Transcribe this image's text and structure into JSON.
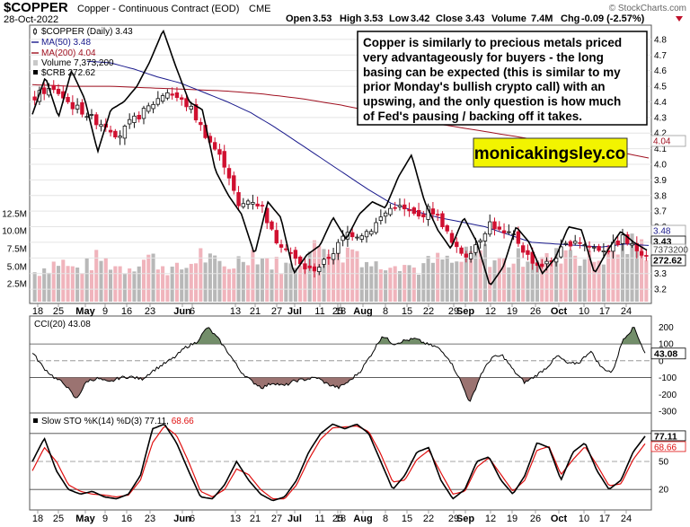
{
  "header": {
    "symbol": "$COPPER",
    "description": "Copper - Continuous Contract (EOD)",
    "exchange": "CME",
    "date": "28-Oct-2022",
    "open_label": "Open",
    "open": "3.53",
    "high_label": "High",
    "high": "3.53",
    "low_label": "Low",
    "low": "3.42",
    "close_label": "Close",
    "close": "3.43",
    "volume_label": "Volume",
    "volume": "7.4M",
    "chg_label": "Chg",
    "chg": "-0.09 (-2.57%)",
    "watermark": "© StockCharts.com"
  },
  "colors": {
    "ma50": "#1a1a8c",
    "ma200": "#a01020",
    "up": "#111111",
    "down": "#d01030",
    "vol_up": "#b8b8b8",
    "vol_down": "#f0b4bc",
    "crb": "#000000",
    "cci_fill": "#5a7a50",
    "cci_fill_low": "#8a5a58",
    "stok": "#000000",
    "stod": "#e01010",
    "brand_bg": "#f2f400"
  },
  "annotation": {
    "text": "Copper is similarly to precious metals priced very advantageously for buyers - the long basing can be expected (this is similar to my prior Monday's bullish crypto call) with an upswing, and the only question is how much of Fed's pausing / backing off it takes.",
    "brand": "monicakingsley.co"
  },
  "chart_data": [
    {
      "type": "candlestick",
      "title": "$COPPER (Daily) 3.43",
      "legend": [
        {
          "label": "$COPPER (Daily) 3.43",
          "icon": "candle"
        },
        {
          "label": "MA(50) 3.48",
          "icon": "ma50"
        },
        {
          "label": "MA(200) 4.04",
          "icon": "ma200"
        },
        {
          "label": "Volume 7,373,200",
          "icon": "volume"
        },
        {
          "label": "$CRB 272.62",
          "icon": "crb"
        }
      ],
      "price_axis": {
        "ticks": [
          "4.8",
          "4.7",
          "4.6",
          "4.5",
          "4.4",
          "4.3",
          "4.2",
          "4.1",
          "4.0",
          "3.9",
          "3.8",
          "3.7",
          "3.6",
          "3.5",
          "3.4",
          "3.3",
          "3.2"
        ],
        "range": [
          3.12,
          4.88
        ]
      },
      "volume_axis": {
        "ticks": [
          "12.5M",
          "10.0M",
          "7.5M",
          "5.0M",
          "2.5M"
        ]
      },
      "x_ticks": [
        "18",
        "25",
        "May",
        "9",
        "16",
        "23",
        "Jun",
        "6",
        "13",
        "21",
        "27",
        "Jul",
        "11",
        "18",
        "25",
        "Aug",
        "8",
        "15",
        "22",
        "29",
        "Sep",
        "12",
        "19",
        "26",
        "Oct",
        "10",
        "17",
        "24"
      ],
      "bold_month_ticks": [
        "May",
        "Jun",
        "Jul",
        "Aug",
        "Sep",
        "Oct"
      ],
      "price_keypoints": [
        4.43,
        4.48,
        4.46,
        4.38,
        4.34,
        4.28,
        4.25,
        4.18,
        4.27,
        4.33,
        4.4,
        4.47,
        4.42,
        4.36,
        4.22,
        4.1,
        3.98,
        3.72,
        3.78,
        3.72,
        3.52,
        3.47,
        3.36,
        3.32,
        3.36,
        3.45,
        3.56,
        3.55,
        3.58,
        3.67,
        3.74,
        3.7,
        3.66,
        3.72,
        3.62,
        3.46,
        3.42,
        3.51,
        3.63,
        3.55,
        3.54,
        3.42,
        3.35,
        3.37,
        3.46,
        3.52,
        3.48,
        3.46,
        3.46,
        3.53,
        3.46,
        3.43
      ],
      "ma50_keypoints": [
        4.66,
        4.65,
        4.61,
        4.56,
        4.52,
        4.46,
        4.4,
        4.33,
        4.24,
        4.14,
        4.04,
        3.94,
        3.84,
        3.75,
        3.7,
        3.66,
        3.63,
        3.6,
        3.55,
        3.5,
        3.49,
        3.48,
        3.47,
        3.49,
        3.48
      ],
      "ma200_keypoints": [
        4.51,
        4.5,
        4.5,
        4.49,
        4.48,
        4.47,
        4.45,
        4.42,
        4.38,
        4.33,
        4.28,
        4.24,
        4.2,
        4.16,
        4.12,
        4.09,
        4.04
      ],
      "crb_keypoints": [
        4.32,
        4.56,
        4.3,
        4.6,
        4.42,
        4.08,
        4.35,
        4.4,
        4.5,
        4.66,
        4.86,
        4.62,
        4.4,
        4.35,
        3.96,
        3.8,
        3.68,
        3.42,
        3.76,
        3.66,
        3.3,
        3.42,
        3.48,
        3.66,
        3.52,
        3.68,
        3.76,
        3.72,
        3.92,
        4.06,
        3.76,
        3.58,
        3.46,
        3.66,
        3.5,
        3.22,
        3.34,
        3.6,
        3.5,
        3.3,
        3.4,
        3.6,
        3.58,
        3.3,
        3.45,
        3.57,
        3.5,
        3.45
      ],
      "volume_keypoints": [
        4.2,
        5.1,
        5.8,
        4.6,
        4.9,
        6.2,
        5.4,
        4.7,
        5.6,
        6.4,
        5.2,
        4.4,
        5.0,
        6.8,
        5.5,
        4.8,
        5.9,
        7.2,
        6.1,
        5.3,
        4.9,
        6.3,
        7.5,
        8.8,
        6.4,
        7.9,
        5.8,
        5.0,
        6.2,
        5.4,
        4.6,
        5.5,
        6.0,
        5.2,
        6.5,
        7.3,
        6.0,
        5.6,
        6.2,
        7.0,
        5.8,
        6.4,
        7.8,
        6.2,
        5.9,
        6.8,
        7.4,
        8.2,
        7.4
      ],
      "last_values": {
        "ma50": "3.48",
        "close": "3.43",
        "volume": "7373200",
        "crb": "272.62",
        "ma200": "4.04"
      }
    },
    {
      "type": "line",
      "title": "CCI(20) 43.08",
      "axis_ticks": [
        "200",
        "100",
        "0",
        "-100",
        "-200",
        "-300"
      ],
      "range": [
        -300,
        250
      ],
      "keypoints": [
        50,
        -40,
        -100,
        -140,
        -230,
        -120,
        -105,
        -130,
        -100,
        -95,
        -110,
        -60,
        -20,
        20,
        80,
        110,
        200,
        130,
        40,
        -60,
        -120,
        -160,
        -130,
        -150,
        -120,
        -110,
        -100,
        -140,
        -160,
        -120,
        -60,
        40,
        150,
        100,
        120,
        130,
        100,
        80,
        20,
        -100,
        -250,
        -80,
        20,
        30,
        -60,
        -130,
        -90,
        -40,
        30,
        -20,
        -10,
        60,
        -40,
        -70,
        130,
        200,
        43
      ],
      "last_value": "43.08"
    },
    {
      "type": "line",
      "title": "Slow STO %K(14) %D(3) 77.11, 68.66",
      "series": [
        {
          "name": "%K(14)",
          "last": "77.11"
        },
        {
          "name": "%D(3)",
          "last": "68.66"
        }
      ],
      "axis_ticks": [
        "80",
        "50",
        "20"
      ],
      "range": [
        0,
        100
      ],
      "k_keypoints": [
        50,
        75,
        40,
        20,
        15,
        18,
        12,
        10,
        15,
        35,
        85,
        90,
        70,
        40,
        12,
        10,
        25,
        50,
        30,
        15,
        8,
        12,
        30,
        60,
        80,
        90,
        85,
        90,
        80,
        50,
        20,
        35,
        60,
        65,
        30,
        10,
        20,
        50,
        55,
        30,
        15,
        35,
        70,
        65,
        30,
        60,
        70,
        40,
        20,
        30,
        60,
        77
      ],
      "d_keypoints": [
        40,
        65,
        50,
        25,
        18,
        15,
        14,
        12,
        14,
        30,
        70,
        88,
        78,
        50,
        18,
        12,
        20,
        42,
        36,
        20,
        10,
        10,
        25,
        52,
        74,
        86,
        87,
        88,
        82,
        58,
        28,
        30,
        52,
        62,
        38,
        15,
        18,
        44,
        54,
        36,
        18,
        30,
        62,
        66,
        36,
        52,
        66,
        46,
        24,
        26,
        52,
        69
      ]
    }
  ]
}
